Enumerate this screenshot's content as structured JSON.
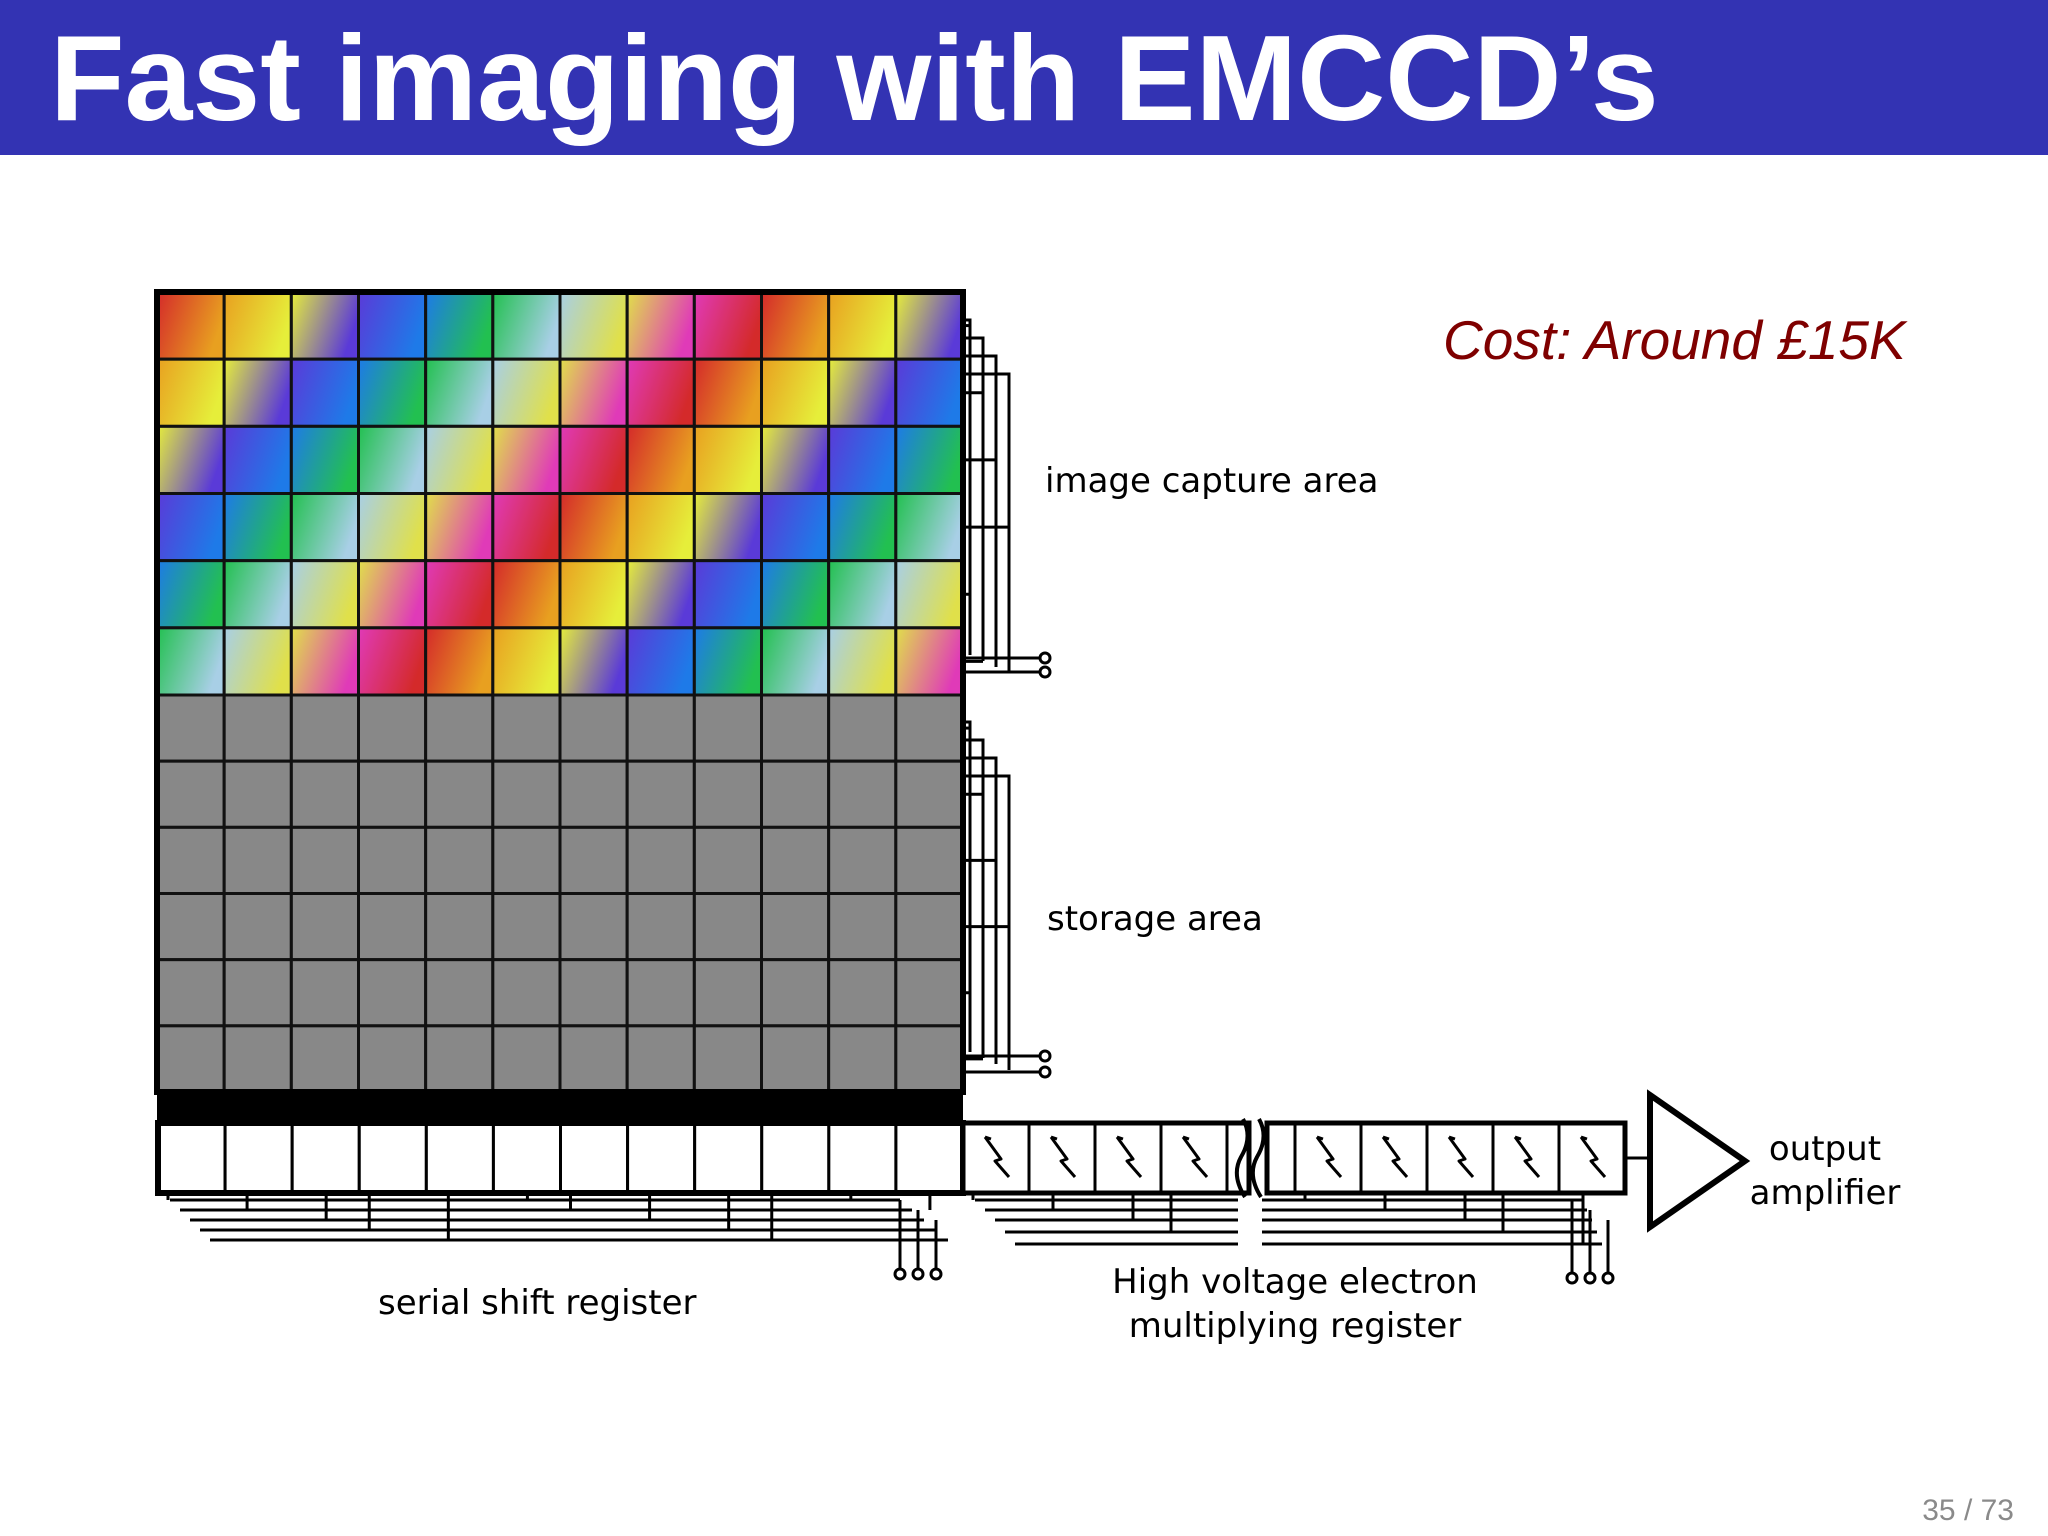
{
  "slide": {
    "title": "Fast imaging with EMCCD’s",
    "cost_note": "Cost: Around £15K",
    "page_current": "35",
    "page_total": "73"
  },
  "diagram": {
    "labels": {
      "image_capture_area": "image capture area",
      "storage_area": "storage area",
      "serial_shift_register": "serial shift register",
      "multiplying_register_line1": "High voltage electron",
      "multiplying_register_line2": "multiplying register",
      "output_amplifier_line1": "output",
      "output_amplifier_line2": "amplifier"
    },
    "image_capture": {
      "rows": 6,
      "cols": 12,
      "palette": [
        "#d42a2a",
        "#e8a020",
        "#e6ee3a",
        "#5a3ad8",
        "#1e7ae8",
        "#22c050",
        "#a8cfe6",
        "#e0e04a",
        "#e03ab8"
      ]
    },
    "storage": {
      "rows": 6,
      "cols": 12,
      "cell_color": "#888888"
    },
    "serial_register": {
      "cells": 12
    },
    "multiplying_register": {
      "cells_left": 4,
      "cells_right": 5
    },
    "colors": {
      "title_bar": "#3333b3",
      "cost_note": "#7f0000",
      "line": "#000000"
    }
  }
}
